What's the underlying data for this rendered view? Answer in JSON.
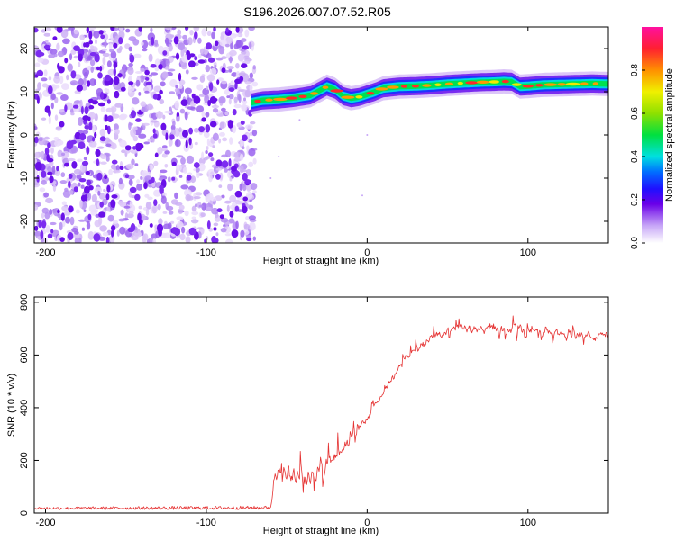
{
  "title": "S196.2026.007.07.52.R05",
  "chart_data": [
    {
      "type": "heatmap",
      "xlabel": "Height of straight line (km)",
      "ylabel": "Frequency (Hz)",
      "xlim": [
        -207,
        150
      ],
      "ylim": [
        -25,
        25
      ],
      "xticks": [
        -200,
        -100,
        0,
        100
      ],
      "xtick_labels": [
        "-200",
        "-100",
        "0",
        "100"
      ],
      "yticks": [
        -20,
        -10,
        0,
        10,
        20
      ],
      "ytick_labels": [
        "-20",
        "-10",
        "0",
        "10",
        "20"
      ],
      "noise_region_x": [
        -207,
        -72
      ],
      "ridge": {
        "x": [
          -72,
          -65,
          -55,
          -45,
          -35,
          -25,
          -20,
          -15,
          -10,
          -5,
          0,
          5,
          10,
          20,
          30,
          40,
          50,
          60,
          70,
          80,
          85,
          90,
          95,
          100,
          110,
          120,
          130,
          140,
          150
        ],
        "freq": [
          7.5,
          8,
          8.2,
          8.6,
          9.2,
          11.2,
          10.5,
          9,
          8.5,
          8.8,
          9.4,
          10,
          10.8,
          11.2,
          11.3,
          11.5,
          11.8,
          12,
          12.2,
          12.3,
          12.4,
          12.3,
          11.2,
          11.3,
          11.6,
          11.7,
          11.8,
          11.9,
          11.8
        ]
      },
      "colorbar": {
        "label": "Normalized spectral amplitude",
        "ticks": [
          0.0,
          0.2,
          0.4,
          0.6,
          0.8
        ],
        "tick_labels": [
          "0.0",
          "0.2",
          "0.4",
          "0.6",
          "0.8"
        ],
        "range": [
          0,
          1
        ]
      }
    },
    {
      "type": "line",
      "xlabel": "Height of straight line (km)",
      "ylabel": "SNR (10 * v/v)",
      "xlim": [
        -207,
        150
      ],
      "ylim": [
        0,
        820
      ],
      "xticks": [
        -200,
        -100,
        0,
        100
      ],
      "xtick_labels": [
        "-200",
        "-100",
        "0",
        "100"
      ],
      "yticks": [
        0,
        200,
        400,
        600,
        800
      ],
      "ytick_labels": [
        "0",
        "200",
        "400",
        "600",
        "800"
      ],
      "color": "#e53232",
      "series": [
        {
          "name": "SNR",
          "x": [
            -207,
            -60,
            -58,
            -50,
            -40,
            -30,
            -20,
            -10,
            0,
            10,
            20,
            30,
            40,
            50,
            60,
            70,
            80,
            90,
            100,
            110,
            120,
            130,
            140,
            150
          ],
          "base": [
            18,
            20,
            150,
            150,
            140,
            160,
            200,
            280,
            360,
            460,
            560,
            630,
            670,
            690,
            700,
            700,
            700,
            695,
            690,
            685,
            680,
            678,
            675,
            672
          ],
          "spread": [
            10,
            14,
            140,
            200,
            230,
            230,
            160,
            110,
            80,
            60,
            60,
            60,
            70,
            90,
            90,
            90,
            90,
            90,
            90,
            80,
            80,
            80,
            80,
            70
          ]
        }
      ]
    }
  ]
}
